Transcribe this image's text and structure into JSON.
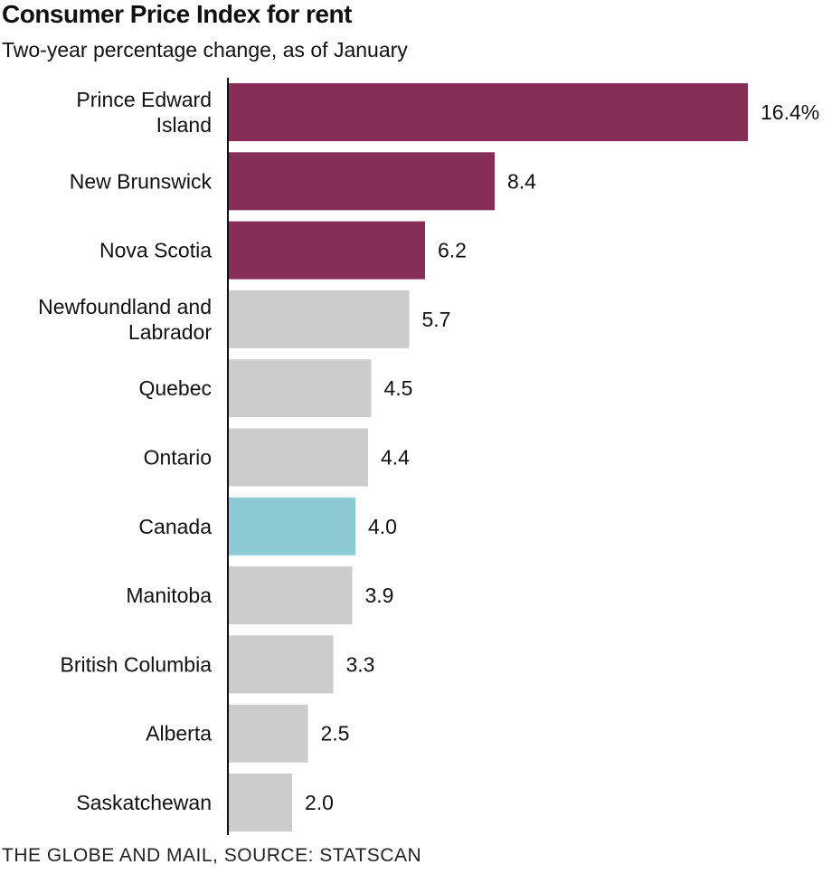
{
  "title": "Consumer Price Index for rent",
  "subtitle": "Two-year percentage change, as of January",
  "source": "THE GLOBE AND MAIL, SOURCE: STATSCAN",
  "colors": {
    "highlight": "#862e58",
    "canada": "#8ccbd3",
    "other": "#cccccc",
    "axis": "#111111"
  },
  "chart_data": {
    "type": "bar",
    "orientation": "horizontal",
    "title": "Consumer Price Index for rent",
    "subtitle": "Two-year percentage change, as of January",
    "categories": [
      "Prince Edward Island",
      "New Brunswick",
      "Nova Scotia",
      "Newfoundland and Labrador",
      "Quebec",
      "Ontario",
      "Canada",
      "Manitoba",
      "British Columbia",
      "Alberta",
      "Saskatchewan"
    ],
    "category_lines": [
      [
        "Prince Edward",
        "Island"
      ],
      [
        "New Brunswick"
      ],
      [
        "Nova Scotia"
      ],
      [
        "Newfoundland and",
        "Labrador"
      ],
      [
        "Quebec"
      ],
      [
        "Ontario"
      ],
      [
        "Canada"
      ],
      [
        "Manitoba"
      ],
      [
        "British Columbia"
      ],
      [
        "Alberta"
      ],
      [
        "Saskatchewan"
      ]
    ],
    "values": [
      16.4,
      8.4,
      6.2,
      5.7,
      4.5,
      4.4,
      4.0,
      3.9,
      3.3,
      2.5,
      2.0
    ],
    "value_labels": [
      "16.4%",
      "8.4",
      "6.2",
      "5.7",
      "4.5",
      "4.4",
      "4.0",
      "3.9",
      "3.3",
      "2.5",
      "2.0"
    ],
    "bar_color_groups": [
      "highlight",
      "highlight",
      "highlight",
      "other",
      "other",
      "other",
      "canada",
      "other",
      "other",
      "other",
      "other"
    ],
    "xlim": [
      0,
      16.4
    ],
    "grid": false,
    "legend": "none"
  }
}
